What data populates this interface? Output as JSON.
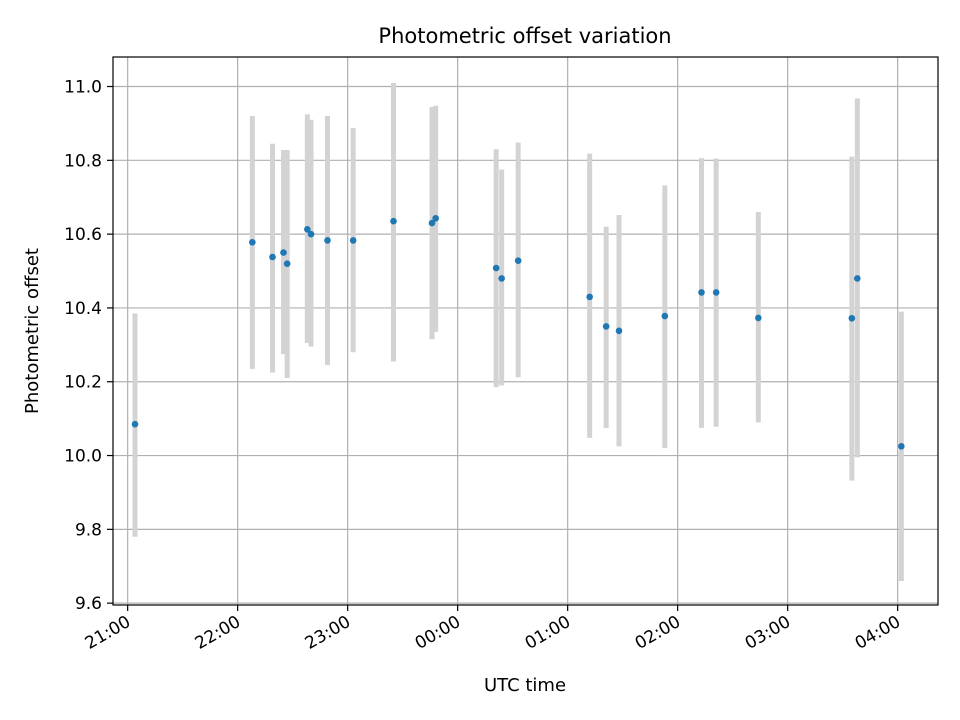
{
  "chart_data": {
    "type": "scatter",
    "title": "Photometric offset variation",
    "xlabel": "UTC time",
    "ylabel": "Photometric offset",
    "x_time_range": [
      "20:52",
      "04:22"
    ],
    "ylim": [
      9.595,
      11.08
    ],
    "y_ticks": [
      "9.6",
      "9.8",
      "10.0",
      "10.2",
      "10.4",
      "10.6",
      "10.8",
      "11.0"
    ],
    "y_tick_values": [
      9.6,
      9.8,
      10.0,
      10.2,
      10.4,
      10.6,
      10.8,
      11.0
    ],
    "x_ticks": [
      "21:00",
      "22:00",
      "23:00",
      "00:00",
      "01:00",
      "02:00",
      "03:00",
      "04:00"
    ],
    "x_tick_times": [
      "21:00",
      "22:00",
      "23:00",
      "00:00",
      "01:00",
      "02:00",
      "03:00",
      "04:00"
    ],
    "grid": true,
    "colors": {
      "marker": "#1f77b4",
      "errorbar": "#d3d3d3",
      "grid": "#b0b0b0",
      "frame": "#000000"
    },
    "points": [
      {
        "t": "21:04",
        "y": 10.085,
        "lo": 9.78,
        "hi": 10.385
      },
      {
        "t": "22:08",
        "y": 10.578,
        "lo": 10.235,
        "hi": 10.92
      },
      {
        "t": "22:19",
        "y": 10.538,
        "lo": 10.225,
        "hi": 10.845
      },
      {
        "t": "22:25",
        "y": 10.55,
        "lo": 10.275,
        "hi": 10.828
      },
      {
        "t": "22:27",
        "y": 10.52,
        "lo": 10.21,
        "hi": 10.828
      },
      {
        "t": "22:38",
        "y": 10.613,
        "lo": 10.305,
        "hi": 10.925
      },
      {
        "t": "22:40",
        "y": 10.6,
        "lo": 10.295,
        "hi": 10.91
      },
      {
        "t": "22:49",
        "y": 10.583,
        "lo": 10.245,
        "hi": 10.92
      },
      {
        "t": "23:03",
        "y": 10.583,
        "lo": 10.28,
        "hi": 10.888
      },
      {
        "t": "23:25",
        "y": 10.635,
        "lo": 10.255,
        "hi": 11.01
      },
      {
        "t": "23:46",
        "y": 10.63,
        "lo": 10.315,
        "hi": 10.945
      },
      {
        "t": "23:48",
        "y": 10.643,
        "lo": 10.335,
        "hi": 10.948
      },
      {
        "t": "00:21",
        "y": 10.508,
        "lo": 10.185,
        "hi": 10.83
      },
      {
        "t": "00:24",
        "y": 10.48,
        "lo": 10.19,
        "hi": 10.775
      },
      {
        "t": "00:33",
        "y": 10.528,
        "lo": 10.212,
        "hi": 10.848
      },
      {
        "t": "01:12",
        "y": 10.43,
        "lo": 10.048,
        "hi": 10.818
      },
      {
        "t": "01:21",
        "y": 10.35,
        "lo": 10.075,
        "hi": 10.62
      },
      {
        "t": "01:28",
        "y": 10.338,
        "lo": 10.025,
        "hi": 10.652
      },
      {
        "t": "01:53",
        "y": 10.378,
        "lo": 10.02,
        "hi": 10.732
      },
      {
        "t": "02:13",
        "y": 10.442,
        "lo": 10.075,
        "hi": 10.806
      },
      {
        "t": "02:21",
        "y": 10.442,
        "lo": 10.078,
        "hi": 10.805
      },
      {
        "t": "02:44",
        "y": 10.373,
        "lo": 10.09,
        "hi": 10.66
      },
      {
        "t": "03:35",
        "y": 10.372,
        "lo": 9.932,
        "hi": 10.81
      },
      {
        "t": "03:38",
        "y": 10.48,
        "lo": 9.995,
        "hi": 10.968
      },
      {
        "t": "04:02",
        "y": 10.025,
        "lo": 9.66,
        "hi": 10.39
      }
    ]
  }
}
